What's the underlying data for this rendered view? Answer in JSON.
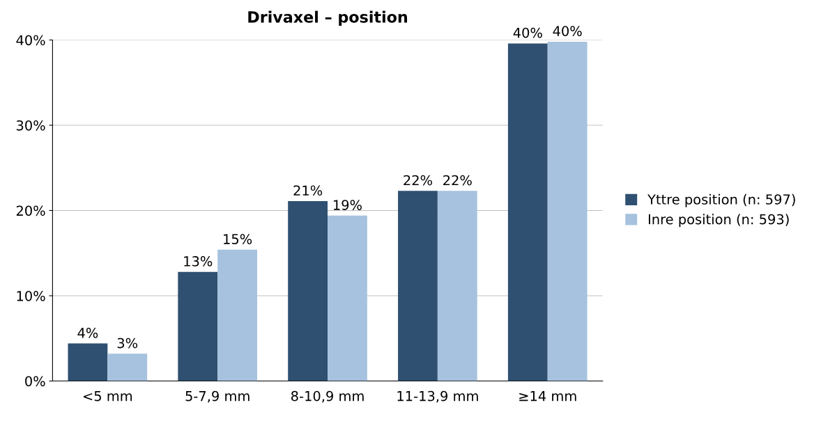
{
  "chart_data": {
    "type": "bar",
    "title": "Drivaxel – position",
    "categories": [
      "<5 mm",
      "5-7,9 mm",
      "8-10,9 mm",
      "11-13,9 mm",
      "≥14 mm"
    ],
    "series": [
      {
        "name": "Yttre position (n: 597)",
        "color": "#2f5070",
        "values": [
          4.4,
          12.8,
          21.1,
          22.3,
          39.6
        ],
        "value_labels": [
          "4%",
          "13%",
          "21%",
          "22%",
          "40%"
        ]
      },
      {
        "name": "Inre position (n: 593)",
        "color": "#a6c2de",
        "values": [
          3.2,
          15.4,
          19.4,
          22.3,
          39.8
        ],
        "value_labels": [
          "3%",
          "15%",
          "19%",
          "22%",
          "40%"
        ]
      }
    ],
    "ylim": [
      0,
      40
    ],
    "yticks": [
      {
        "value": 0,
        "label": "0%"
      },
      {
        "value": 10,
        "label": "10%"
      },
      {
        "value": 20,
        "label": "20%"
      },
      {
        "value": 30,
        "label": "30%"
      },
      {
        "value": 40,
        "label": "40%"
      }
    ],
    "grid": "y",
    "legend": "right"
  }
}
